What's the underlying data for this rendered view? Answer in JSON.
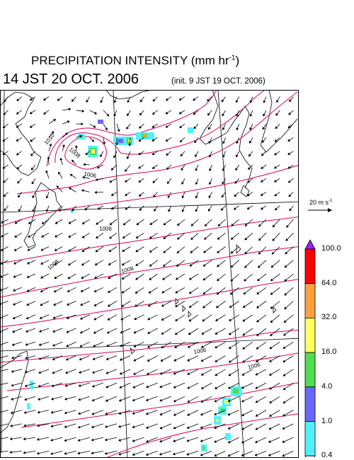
{
  "header": {
    "title_main": "PRECIPITATION INTENSITY (mm hr",
    "title_exp": "-1",
    "title_close": ")",
    "valid_time": "14 JST 20 OCT. 2006",
    "init_time": "(init. 9 JST 19 OCT. 2006)"
  },
  "wind_scale": {
    "label_main": "20 m s",
    "label_exp": "-1",
    "speed": 20
  },
  "colorbar": {
    "levels": [
      "100.0",
      "64.0",
      "32.0",
      "16.0",
      "4.0",
      "1.0",
      "0.4"
    ],
    "colors": [
      "#a020f0",
      "#ff0000",
      "#ffa040",
      "#ffff60",
      "#50dd50",
      "#6868ff",
      "#50f0ff",
      "#ffffff"
    ]
  },
  "isobars": {
    "color": "#dd0060",
    "labels": [
      "1010",
      "1008",
      "1006",
      "1008",
      "1008",
      "1006",
      "1006",
      "1006"
    ]
  }
}
